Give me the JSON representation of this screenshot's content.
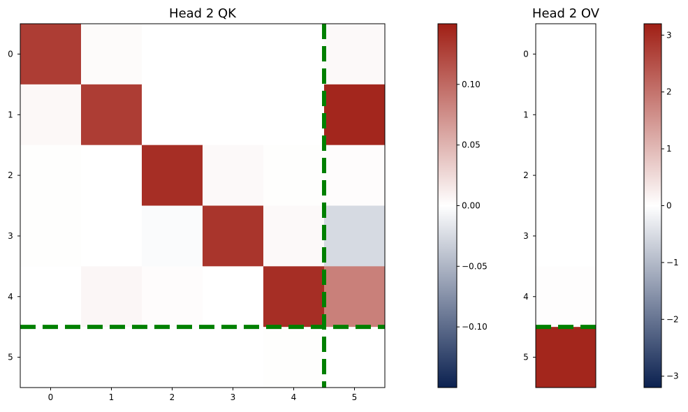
{
  "chart_data": [
    {
      "type": "heatmap",
      "title": "Head 2 QK",
      "x_ticks": [
        "0",
        "1",
        "2",
        "3",
        "4",
        "5"
      ],
      "y_ticks": [
        "0",
        "1",
        "2",
        "3",
        "4",
        "5"
      ],
      "values": [
        [
          0.13,
          0.003,
          0.0,
          0.0,
          0.0,
          0.004
        ],
        [
          0.005,
          0.13,
          0.0,
          0.0,
          0.0,
          0.145
        ],
        [
          0.001,
          0.0,
          0.14,
          0.004,
          0.001,
          0.002
        ],
        [
          0.001,
          0.0,
          -0.003,
          0.135,
          0.004,
          -0.025
        ],
        [
          0.0,
          0.006,
          0.002,
          0.0,
          0.14,
          0.085
        ],
        [
          0.0,
          0.0,
          0.0,
          0.0,
          0.001,
          0.0
        ]
      ],
      "vmin": -0.15,
      "vmax": 0.15,
      "cmap": [
        "#0b2150",
        "#ffffff",
        "#a01f15"
      ],
      "colorbar_ticks": [
        {
          "value": 0.1,
          "label": "0.10"
        },
        {
          "value": 0.05,
          "label": "0.05"
        },
        {
          "value": 0.0,
          "label": "0.00"
        },
        {
          "value": -0.05,
          "label": "−0.05"
        },
        {
          "value": -0.1,
          "label": "−0.10"
        }
      ],
      "dashed_lines": {
        "vertical_x": 4.5,
        "horizontal_y": 4.5,
        "color": "#008000"
      }
    },
    {
      "type": "heatmap",
      "title": "Head 2 OV",
      "x_ticks": [],
      "y_ticks": [
        "0",
        "1",
        "2",
        "3",
        "4",
        "5"
      ],
      "values": [
        [
          0.0
        ],
        [
          0.0
        ],
        [
          0.0
        ],
        [
          0.0
        ],
        [
          0.03
        ],
        [
          3.1
        ]
      ],
      "vmin": -3.2,
      "vmax": 3.2,
      "cmap": [
        "#0b2150",
        "#ffffff",
        "#a01f15"
      ],
      "colorbar_ticks": [
        {
          "value": 3,
          "label": "3"
        },
        {
          "value": 2,
          "label": "2"
        },
        {
          "value": 1,
          "label": "1"
        },
        {
          "value": 0,
          "label": "0"
        },
        {
          "value": -1,
          "label": "−1"
        },
        {
          "value": -2,
          "label": "−2"
        },
        {
          "value": -3,
          "label": "−3"
        }
      ],
      "dashed_lines": {
        "horizontal_y": 4.5,
        "color": "#008000"
      }
    }
  ]
}
